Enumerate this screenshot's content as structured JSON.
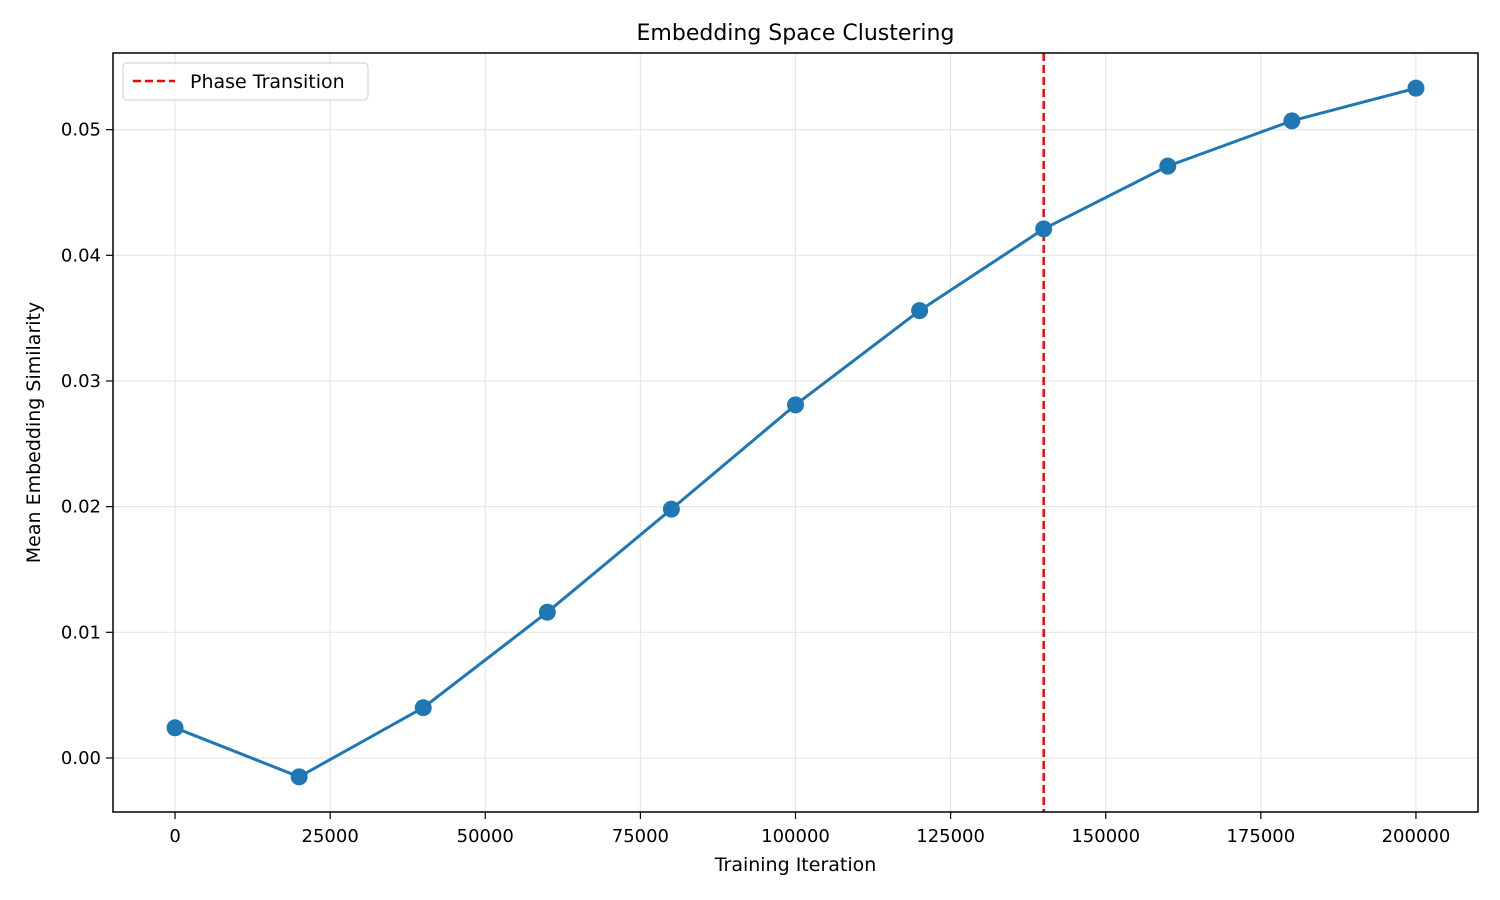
{
  "chart_data": {
    "type": "line",
    "title": "Embedding Space Clustering",
    "xlabel": "Training Iteration",
    "ylabel": "Mean Embedding Similarity",
    "xlim": [
      -10000,
      210000
    ],
    "ylim": [
      -0.0043,
      0.0561
    ],
    "xticks": [
      0,
      25000,
      50000,
      75000,
      100000,
      125000,
      150000,
      175000,
      200000
    ],
    "xtick_labels": [
      "0",
      "25000",
      "50000",
      "75000",
      "100000",
      "125000",
      "150000",
      "175000",
      "200000"
    ],
    "yticks": [
      0.0,
      0.01,
      0.02,
      0.03,
      0.04,
      0.05
    ],
    "ytick_labels": [
      "0.00",
      "0.01",
      "0.02",
      "0.03",
      "0.04",
      "0.05"
    ],
    "grid": true,
    "legend_position": "upper left",
    "series": [
      {
        "color": "#1f77b4",
        "marker": "circle",
        "x": [
          0,
          20000,
          40000,
          60000,
          80000,
          100000,
          120000,
          140000,
          160000,
          180000,
          200000
        ],
        "y": [
          0.0024,
          -0.0015,
          0.004,
          0.0116,
          0.0198,
          0.0281,
          0.0356,
          0.0421,
          0.0471,
          0.0507,
          0.0533
        ]
      }
    ],
    "annotations": [
      {
        "type": "vline",
        "x": 140000,
        "label": "Phase Transition",
        "color": "#ff0000",
        "style": "dashed"
      }
    ]
  }
}
